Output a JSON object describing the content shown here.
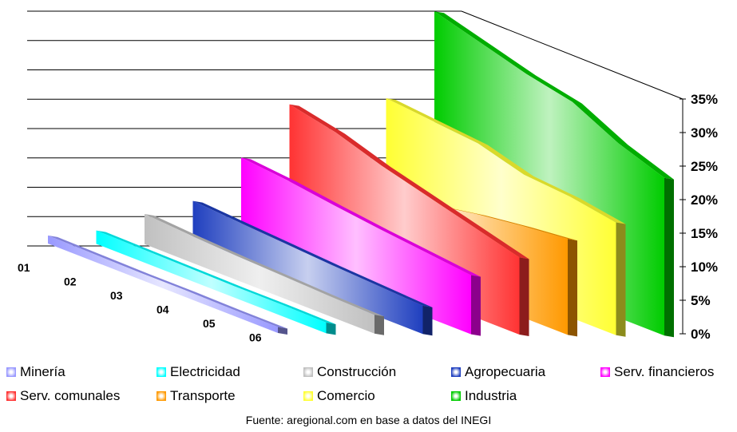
{
  "chart_data": {
    "type": "bar",
    "subtype": "3d-area",
    "categories": [
      "01",
      "02",
      "03",
      "04",
      "05",
      "06"
    ],
    "yticks": [
      "0%",
      "5%",
      "10%",
      "15%",
      "20%",
      "25%",
      "30%",
      "35%"
    ],
    "ylim": [
      0,
      40
    ],
    "series": [
      {
        "name": "Minería",
        "color": "#9999ff",
        "values": [
          1.2,
          1.1,
          1.0,
          1.0,
          0.9,
          0.9
        ]
      },
      {
        "name": "Electricidad",
        "color": "#00ffff",
        "values": [
          2.0,
          1.9,
          1.8,
          1.7,
          1.7,
          1.6
        ]
      },
      {
        "name": "Construcción",
        "color": "#c0c0c0",
        "values": [
          4.5,
          4.0,
          3.6,
          3.3,
          3.0,
          2.8
        ]
      },
      {
        "name": "Agropecuaria",
        "color": "#1f3fbf",
        "values": [
          6.5,
          6.0,
          5.5,
          5.0,
          4.6,
          4.2
        ]
      },
      {
        "name": "Serv. financieros",
        "color": "#ff00ff",
        "values": [
          13.0,
          12.3,
          11.3,
          10.4,
          9.6,
          8.8
        ]
      },
      {
        "name": "Serv. comunales",
        "color": "#ff3333",
        "values": [
          21.0,
          19.5,
          17.2,
          15.3,
          13.4,
          11.5
        ]
      },
      {
        "name": "Transporte",
        "color": "#ff9900",
        "values": [
          9.0,
          10.2,
          11.5,
          12.7,
          13.6,
          14.3
        ]
      },
      {
        "name": "Comercio",
        "color": "#ffff33",
        "values": [
          22.0,
          21.3,
          20.6,
          18.6,
          18.0,
          16.8
        ]
      },
      {
        "name": "Industria",
        "color": "#00cc00",
        "values": [
          35.0,
          33.0,
          31.0,
          29.5,
          26.0,
          23.5
        ]
      }
    ]
  },
  "source": "Fuente: aregional.com en base a datos del INEGI"
}
